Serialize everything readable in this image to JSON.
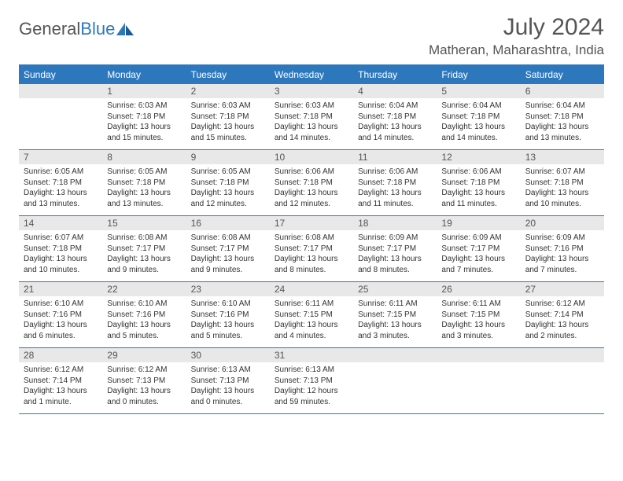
{
  "brand": {
    "part1": "General",
    "part2": "Blue"
  },
  "title": "July 2024",
  "location": "Matheran, Maharashtra, India",
  "colors": {
    "accent": "#2d78bd",
    "daybg": "#e8e8e8",
    "text": "#333333"
  },
  "dayHeaders": [
    "Sunday",
    "Monday",
    "Tuesday",
    "Wednesday",
    "Thursday",
    "Friday",
    "Saturday"
  ],
  "weeks": [
    [
      {
        "num": "",
        "sunrise": "",
        "sunset": "",
        "daylight": ""
      },
      {
        "num": "1",
        "sunrise": "Sunrise: 6:03 AM",
        "sunset": "Sunset: 7:18 PM",
        "daylight": "Daylight: 13 hours and 15 minutes."
      },
      {
        "num": "2",
        "sunrise": "Sunrise: 6:03 AM",
        "sunset": "Sunset: 7:18 PM",
        "daylight": "Daylight: 13 hours and 15 minutes."
      },
      {
        "num": "3",
        "sunrise": "Sunrise: 6:03 AM",
        "sunset": "Sunset: 7:18 PM",
        "daylight": "Daylight: 13 hours and 14 minutes."
      },
      {
        "num": "4",
        "sunrise": "Sunrise: 6:04 AM",
        "sunset": "Sunset: 7:18 PM",
        "daylight": "Daylight: 13 hours and 14 minutes."
      },
      {
        "num": "5",
        "sunrise": "Sunrise: 6:04 AM",
        "sunset": "Sunset: 7:18 PM",
        "daylight": "Daylight: 13 hours and 14 minutes."
      },
      {
        "num": "6",
        "sunrise": "Sunrise: 6:04 AM",
        "sunset": "Sunset: 7:18 PM",
        "daylight": "Daylight: 13 hours and 13 minutes."
      }
    ],
    [
      {
        "num": "7",
        "sunrise": "Sunrise: 6:05 AM",
        "sunset": "Sunset: 7:18 PM",
        "daylight": "Daylight: 13 hours and 13 minutes."
      },
      {
        "num": "8",
        "sunrise": "Sunrise: 6:05 AM",
        "sunset": "Sunset: 7:18 PM",
        "daylight": "Daylight: 13 hours and 13 minutes."
      },
      {
        "num": "9",
        "sunrise": "Sunrise: 6:05 AM",
        "sunset": "Sunset: 7:18 PM",
        "daylight": "Daylight: 13 hours and 12 minutes."
      },
      {
        "num": "10",
        "sunrise": "Sunrise: 6:06 AM",
        "sunset": "Sunset: 7:18 PM",
        "daylight": "Daylight: 13 hours and 12 minutes."
      },
      {
        "num": "11",
        "sunrise": "Sunrise: 6:06 AM",
        "sunset": "Sunset: 7:18 PM",
        "daylight": "Daylight: 13 hours and 11 minutes."
      },
      {
        "num": "12",
        "sunrise": "Sunrise: 6:06 AM",
        "sunset": "Sunset: 7:18 PM",
        "daylight": "Daylight: 13 hours and 11 minutes."
      },
      {
        "num": "13",
        "sunrise": "Sunrise: 6:07 AM",
        "sunset": "Sunset: 7:18 PM",
        "daylight": "Daylight: 13 hours and 10 minutes."
      }
    ],
    [
      {
        "num": "14",
        "sunrise": "Sunrise: 6:07 AM",
        "sunset": "Sunset: 7:18 PM",
        "daylight": "Daylight: 13 hours and 10 minutes."
      },
      {
        "num": "15",
        "sunrise": "Sunrise: 6:08 AM",
        "sunset": "Sunset: 7:17 PM",
        "daylight": "Daylight: 13 hours and 9 minutes."
      },
      {
        "num": "16",
        "sunrise": "Sunrise: 6:08 AM",
        "sunset": "Sunset: 7:17 PM",
        "daylight": "Daylight: 13 hours and 9 minutes."
      },
      {
        "num": "17",
        "sunrise": "Sunrise: 6:08 AM",
        "sunset": "Sunset: 7:17 PM",
        "daylight": "Daylight: 13 hours and 8 minutes."
      },
      {
        "num": "18",
        "sunrise": "Sunrise: 6:09 AM",
        "sunset": "Sunset: 7:17 PM",
        "daylight": "Daylight: 13 hours and 8 minutes."
      },
      {
        "num": "19",
        "sunrise": "Sunrise: 6:09 AM",
        "sunset": "Sunset: 7:17 PM",
        "daylight": "Daylight: 13 hours and 7 minutes."
      },
      {
        "num": "20",
        "sunrise": "Sunrise: 6:09 AM",
        "sunset": "Sunset: 7:16 PM",
        "daylight": "Daylight: 13 hours and 7 minutes."
      }
    ],
    [
      {
        "num": "21",
        "sunrise": "Sunrise: 6:10 AM",
        "sunset": "Sunset: 7:16 PM",
        "daylight": "Daylight: 13 hours and 6 minutes."
      },
      {
        "num": "22",
        "sunrise": "Sunrise: 6:10 AM",
        "sunset": "Sunset: 7:16 PM",
        "daylight": "Daylight: 13 hours and 5 minutes."
      },
      {
        "num": "23",
        "sunrise": "Sunrise: 6:10 AM",
        "sunset": "Sunset: 7:16 PM",
        "daylight": "Daylight: 13 hours and 5 minutes."
      },
      {
        "num": "24",
        "sunrise": "Sunrise: 6:11 AM",
        "sunset": "Sunset: 7:15 PM",
        "daylight": "Daylight: 13 hours and 4 minutes."
      },
      {
        "num": "25",
        "sunrise": "Sunrise: 6:11 AM",
        "sunset": "Sunset: 7:15 PM",
        "daylight": "Daylight: 13 hours and 3 minutes."
      },
      {
        "num": "26",
        "sunrise": "Sunrise: 6:11 AM",
        "sunset": "Sunset: 7:15 PM",
        "daylight": "Daylight: 13 hours and 3 minutes."
      },
      {
        "num": "27",
        "sunrise": "Sunrise: 6:12 AM",
        "sunset": "Sunset: 7:14 PM",
        "daylight": "Daylight: 13 hours and 2 minutes."
      }
    ],
    [
      {
        "num": "28",
        "sunrise": "Sunrise: 6:12 AM",
        "sunset": "Sunset: 7:14 PM",
        "daylight": "Daylight: 13 hours and 1 minute."
      },
      {
        "num": "29",
        "sunrise": "Sunrise: 6:12 AM",
        "sunset": "Sunset: 7:13 PM",
        "daylight": "Daylight: 13 hours and 0 minutes."
      },
      {
        "num": "30",
        "sunrise": "Sunrise: 6:13 AM",
        "sunset": "Sunset: 7:13 PM",
        "daylight": "Daylight: 13 hours and 0 minutes."
      },
      {
        "num": "31",
        "sunrise": "Sunrise: 6:13 AM",
        "sunset": "Sunset: 7:13 PM",
        "daylight": "Daylight: 12 hours and 59 minutes."
      },
      {
        "num": "",
        "sunrise": "",
        "sunset": "",
        "daylight": ""
      },
      {
        "num": "",
        "sunrise": "",
        "sunset": "",
        "daylight": ""
      },
      {
        "num": "",
        "sunrise": "",
        "sunset": "",
        "daylight": ""
      }
    ]
  ]
}
